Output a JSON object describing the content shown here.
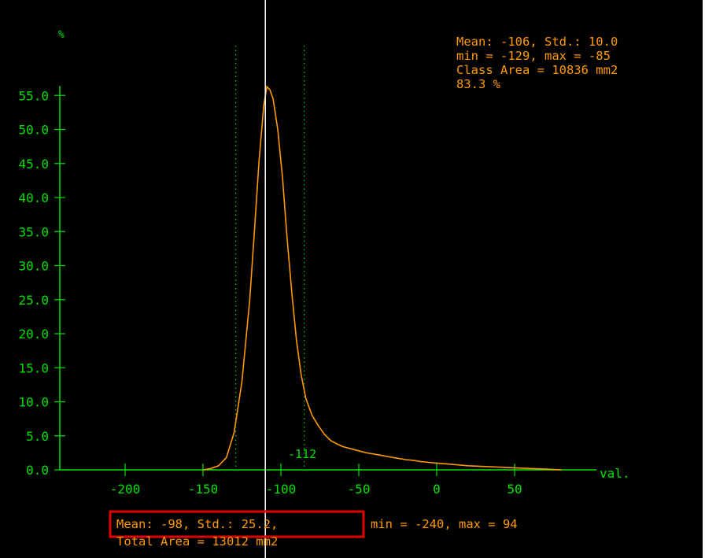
{
  "chart_data": {
    "type": "line",
    "title": "",
    "ylabel": "%",
    "xlabel": "val.",
    "xlim": [
      -240,
      94
    ],
    "ylim": [
      0,
      55
    ],
    "y_ticks": [
      0,
      5,
      10,
      15,
      20,
      25,
      30,
      35,
      40,
      45,
      50,
      55
    ],
    "y_tick_labels": [
      "0.0",
      "5.0",
      "10.0",
      "15.0",
      "20.0",
      "25.0",
      "30.0",
      "35.0",
      "40.0",
      "45.0",
      "50.0",
      "55.0"
    ],
    "x_ticks": [
      -200,
      -150,
      -100,
      -50,
      0,
      50
    ],
    "x_tick_labels": [
      "-200",
      "-150",
      "-100",
      "-50",
      "0",
      "50"
    ],
    "grid": false,
    "series": [
      {
        "color": "#ff9900",
        "x": [
          -150,
          -145,
          -140,
          -135,
          -130,
          -125,
          -120,
          -117,
          -114,
          -111,
          -109,
          -107,
          -105,
          -102,
          -99,
          -96,
          -93,
          -90,
          -87,
          -84,
          -80,
          -76,
          -72,
          -68,
          -64,
          -60,
          -55,
          -50,
          -45,
          -40,
          -35,
          -30,
          -25,
          -20,
          -15,
          -10,
          -5,
          0,
          10,
          20,
          30,
          40,
          50,
          60,
          70,
          80
        ],
        "y": [
          0.0,
          0.2,
          0.6,
          1.8,
          5.5,
          13.0,
          25.0,
          35.0,
          45.5,
          53.5,
          56.3,
          55.8,
          54.5,
          50.0,
          43.0,
          34.0,
          26.0,
          19.0,
          14.0,
          10.5,
          8.0,
          6.5,
          5.2,
          4.3,
          3.8,
          3.4,
          3.1,
          2.8,
          2.5,
          2.3,
          2.1,
          1.9,
          1.7,
          1.5,
          1.4,
          1.2,
          1.1,
          1.0,
          0.8,
          0.6,
          0.5,
          0.4,
          0.3,
          0.2,
          0.1,
          0.0
        ]
      }
    ],
    "markers": {
      "cursor_x": -110,
      "dotted_lines_x": [
        -129,
        -85
      ],
      "marker_label": "-112",
      "marker_label_x": -112
    },
    "class_stats": {
      "lines": [
        "Mean: -106, Std.: 10.0",
        "min = -129, max = -85",
        "Class Area = 10836 mm2",
        "83.3 %"
      ]
    },
    "total_stats": {
      "mean_std": "Mean: -98, Std.: 25.2,",
      "minmax": "min = -240, max = 94",
      "total_area": "Total Area = 13012 mm2"
    },
    "colors": {
      "background": "#000000",
      "axes": "#00e000",
      "curve": "#ff9900",
      "cursor": "#ffffff",
      "dotted": "#00d000",
      "text": "#ff9900",
      "highlight_box": "#e00000"
    }
  }
}
